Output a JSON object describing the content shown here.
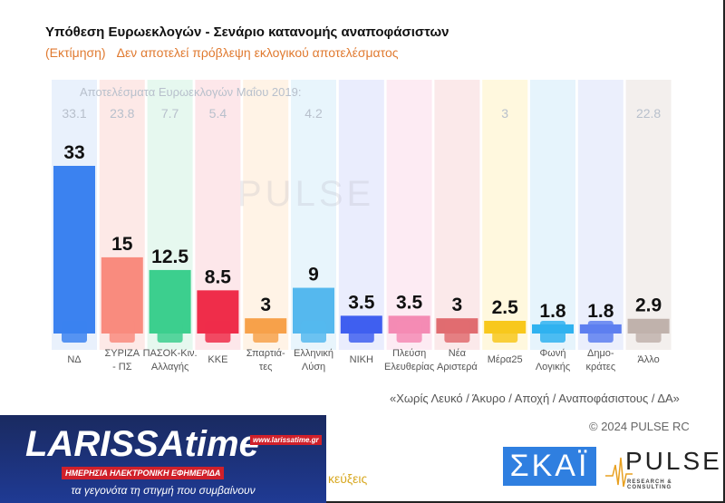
{
  "header": {
    "title": "Υπόθεση Ευρωεκλογών - Σενάριο κατανομής αναποφάσιστων",
    "subtitle_a": "(Εκτίμηση)",
    "subtitle_b": "Δεν αποτελεί πρόβλεψη εκλογικού αποτελέσματος"
  },
  "chart_data": {
    "type": "bar",
    "previous_label": "Αποτελέσματα Ευρωεκλογών Μαΐου 2019:",
    "categories": [
      "ΝΔ",
      "ΣΥΡΙΖΑ - ΠΣ",
      "ΠΑΣΟΚ-Κιν. Αλλαγής",
      "ΚΚΕ",
      "Σπαρτιά- τες",
      "Ελληνική Λύση",
      "ΝΙΚΗ",
      "Πλεύση Ελευθερίας",
      "Νέα Αριστερά",
      "Μέρα25",
      "Φωνή Λογικής",
      "Δημο- κράτες",
      "Άλλο"
    ],
    "values": [
      33,
      15,
      12.5,
      8.5,
      3,
      9,
      3.5,
      3.5,
      3,
      2.5,
      1.8,
      1.8,
      2.9
    ],
    "labels": [
      "33",
      "15",
      "12.5",
      "8.5",
      "3",
      "9",
      "3.5",
      "3.5",
      "3",
      "2.5",
      "1.8",
      "1.8",
      "2.9"
    ],
    "previous": [
      "33.1",
      "23.8",
      "7.7",
      "5.4",
      "",
      "4.2",
      "",
      "",
      "",
      "3",
      "",
      "",
      "22.8"
    ],
    "colors": [
      "#3b82f0",
      "#f98b7e",
      "#3ccf8e",
      "#ef2d4a",
      "#f7a14a",
      "#55b8ee",
      "#3f5ff0",
      "#f48bb4",
      "#e06c70",
      "#f8c81c",
      "#2fb2f0",
      "#5d7ff0",
      "#c0b2ac"
    ],
    "bg_colors": [
      "#e9f1fc",
      "#fde9e7",
      "#e6f8ef",
      "#fde7ea",
      "#fff3e6",
      "#e8f5fc",
      "#eaedfd",
      "#fdebf3",
      "#fbe9ea",
      "#fff8de",
      "#e6f4fc",
      "#ebeffc",
      "#f3efed"
    ],
    "ylim": [
      0,
      35
    ]
  },
  "footer": {
    "note": "«Χωρίς Λευκό / Άκυρο / Αποχή / Αναποφάσιστους / ΔΑ»",
    "copyright": "© 2024 PULSE RC",
    "skai": "ΣΚΑΪ",
    "pulse": "PULSE",
    "pulse_sub": "RESEARCH & CONSULTING",
    "watermark": "PULSE",
    "cut_text": "κεύξεις"
  },
  "ad": {
    "logo": "LARISSAtime",
    "url": "www.larissatime.gr",
    "tagline": "ΗΜΕΡΗΣΙΑ ΗΛΕΚΤΡΟΝΙΚΗ ΕΦΗΜΕΡΙΔΑ",
    "slogan": "τα γεγονότα τη στιγμή που συμβαίνουν"
  }
}
